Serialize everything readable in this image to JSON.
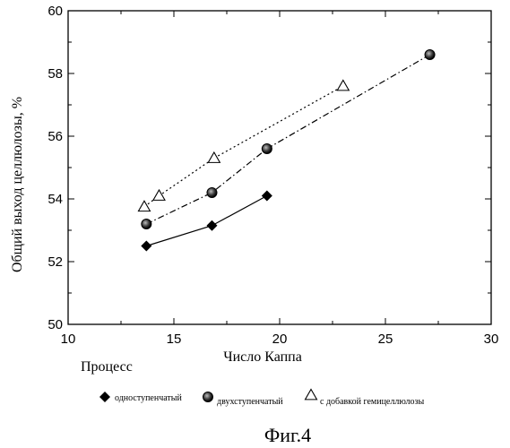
{
  "chart_data": {
    "type": "scatter",
    "xlabel": "Число Каппа",
    "ylabel": "Общий выход целлюлозы, %",
    "xlim": [
      10,
      30
    ],
    "ylim": [
      50,
      60
    ],
    "xticks": [
      "10",
      "15",
      "20",
      "25",
      "30"
    ],
    "yticks": [
      "50",
      "52",
      "54",
      "56",
      "58",
      "60"
    ],
    "grid": false,
    "legend_position": "bottom",
    "series": [
      {
        "name": "одноступенчатый",
        "marker": "filled-diamond",
        "line_style": "solid",
        "color": "#000000",
        "x": [
          13.7,
          16.8,
          19.4
        ],
        "y": [
          52.5,
          53.15,
          54.1
        ]
      },
      {
        "name": "двухступенчатый",
        "marker": "shaded-circle",
        "line_style": "dash-dot",
        "color": "#000000",
        "x": [
          13.7,
          16.8,
          19.4,
          27.1
        ],
        "y": [
          53.2,
          54.2,
          55.6,
          58.6
        ]
      },
      {
        "name": "с добавкой гемицеллюлозы",
        "marker": "open-triangle",
        "line_style": "dotted",
        "color": "#000000",
        "x": [
          13.6,
          14.3,
          16.9,
          23.0
        ],
        "y": [
          53.75,
          54.1,
          55.3,
          57.6
        ]
      }
    ]
  },
  "annotation": "Процесс",
  "caption": "Фиг.4"
}
